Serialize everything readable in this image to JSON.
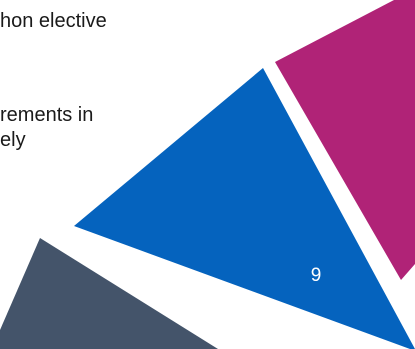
{
  "slide": {
    "body_lines": [
      "hon elective",
      "rements in",
      "ely"
    ],
    "page_number": "9"
  },
  "colors": {
    "magenta_triangle": "#B02377",
    "blue_triangle": "#0563BE",
    "slate_triangle": "#44546A",
    "text": "#1a1a1a",
    "page_number_text": "#ffffff"
  }
}
